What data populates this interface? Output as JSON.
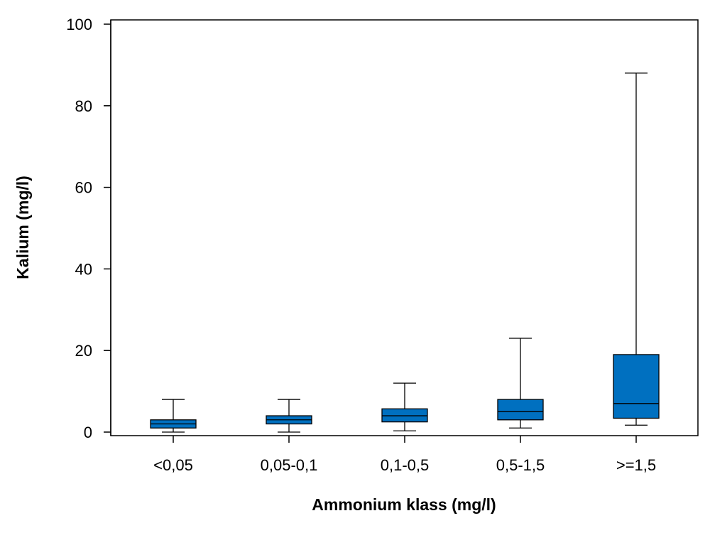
{
  "chart_data": {
    "type": "boxplot",
    "xlabel": "Ammonium klass (mg/l)",
    "ylabel": "Kalium (mg/l)",
    "ylim": [
      0,
      100
    ],
    "yticks": [
      0,
      20,
      40,
      60,
      80,
      100
    ],
    "categories": [
      "<0,05",
      "0,05-0,1",
      "0,1-0,5",
      "0,5-1,5",
      ">=1,5"
    ],
    "boxes": [
      {
        "whisker_low": 0.0,
        "q1": 1.0,
        "median": 2.0,
        "q3": 3.0,
        "whisker_high": 8.0
      },
      {
        "whisker_low": 0.0,
        "q1": 2.0,
        "median": 3.0,
        "q3": 4.0,
        "whisker_high": 8.0
      },
      {
        "whisker_low": 0.3,
        "q1": 2.5,
        "median": 4.0,
        "q3": 5.7,
        "whisker_high": 12.0
      },
      {
        "whisker_low": 1.0,
        "q1": 3.0,
        "median": 5.0,
        "q3": 8.0,
        "whisker_high": 23.0
      },
      {
        "whisker_low": 1.7,
        "q1": 3.4,
        "median": 7.0,
        "q3": 19.0,
        "whisker_high": 88.0
      }
    ],
    "box_color": "#0070C0",
    "grid": false,
    "legend": "none"
  }
}
